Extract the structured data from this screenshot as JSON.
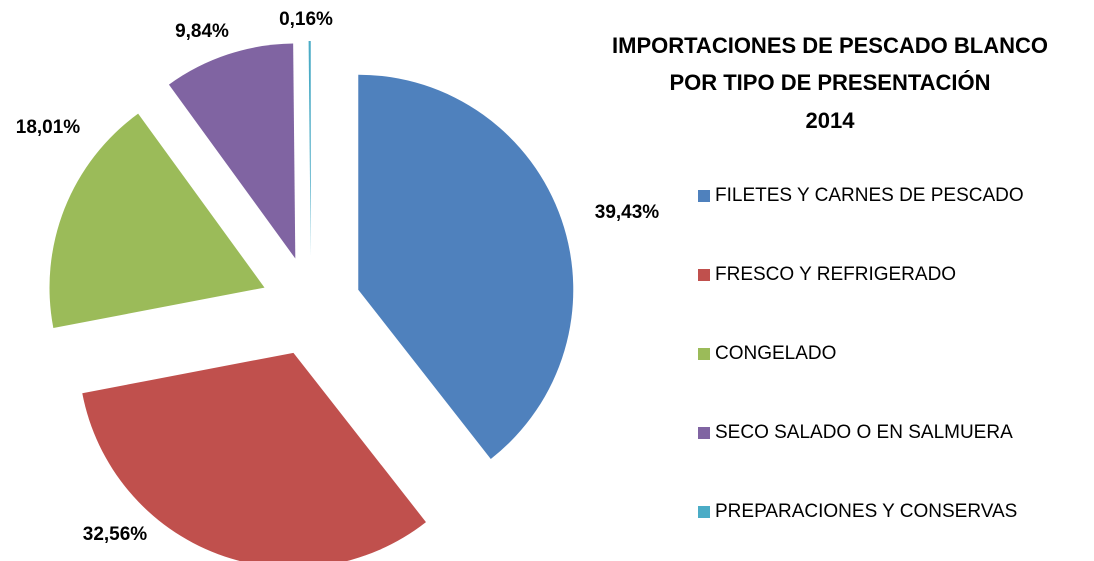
{
  "chart_data": {
    "type": "pie",
    "title": [
      "IMPORTACIONES DE PESCADO BLANCO",
      "POR TIPO DE PRESENTACIÓN",
      "2014"
    ],
    "categories": [
      "FILETES Y CARNES DE PESCADO",
      "FRESCO Y REFRIGERADO",
      "CONGELADO",
      "SECO SALADO O EN SALMUERA",
      "PREPARACIONES Y CONSERVAS"
    ],
    "values": [
      39.43,
      32.56,
      18.01,
      9.84,
      0.16
    ],
    "value_labels": [
      "39,43%",
      "32,56%",
      "18,01%",
      "9,84%",
      "0,16%"
    ],
    "colors": [
      "#4f81bd",
      "#c0504d",
      "#9bbb59",
      "#8064a2",
      "#4bacc6"
    ],
    "legend": "right"
  }
}
